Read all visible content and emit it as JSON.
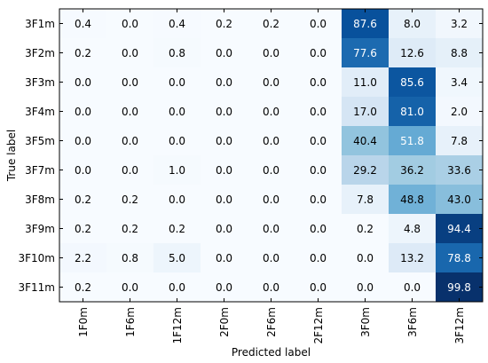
{
  "chart_data": {
    "type": "heatmap",
    "title": "",
    "xlabel": "Predicted label",
    "ylabel": "True label",
    "x_categories": [
      "1F0m",
      "1F6m",
      "1F12m",
      "2F0m",
      "2F6m",
      "2F12m",
      "3F0m",
      "3F6m",
      "3F12m"
    ],
    "y_categories": [
      "3F1m",
      "3F2m",
      "3F3m",
      "3F4m",
      "3F5m",
      "3F7m",
      "3F8m",
      "3F9m",
      "3F10m",
      "3F11m"
    ],
    "values": [
      [
        0.4,
        0.0,
        0.4,
        0.2,
        0.2,
        0.0,
        87.6,
        8.0,
        3.2
      ],
      [
        0.2,
        0.0,
        0.8,
        0.0,
        0.0,
        0.0,
        77.6,
        12.6,
        8.8
      ],
      [
        0.0,
        0.0,
        0.0,
        0.0,
        0.0,
        0.0,
        11.0,
        85.6,
        3.4
      ],
      [
        0.0,
        0.0,
        0.0,
        0.0,
        0.0,
        0.0,
        17.0,
        81.0,
        2.0
      ],
      [
        0.0,
        0.0,
        0.0,
        0.0,
        0.0,
        0.0,
        40.4,
        51.8,
        7.8
      ],
      [
        0.0,
        0.0,
        1.0,
        0.0,
        0.0,
        0.0,
        29.2,
        36.2,
        33.6
      ],
      [
        0.2,
        0.2,
        0.0,
        0.0,
        0.0,
        0.0,
        7.8,
        48.8,
        43.0
      ],
      [
        0.2,
        0.2,
        0.2,
        0.0,
        0.0,
        0.0,
        0.2,
        4.8,
        94.4
      ],
      [
        2.2,
        0.8,
        5.0,
        0.0,
        0.0,
        0.0,
        0.0,
        13.2,
        78.8
      ],
      [
        0.2,
        0.0,
        0.0,
        0.0,
        0.0,
        0.0,
        0.0,
        0.0,
        99.8
      ]
    ],
    "value_range": [
      0,
      100
    ],
    "colormap": "Blues",
    "grid": false,
    "legend": "none",
    "text_color_dark": "#000000",
    "text_color_light": "#ffffff"
  }
}
